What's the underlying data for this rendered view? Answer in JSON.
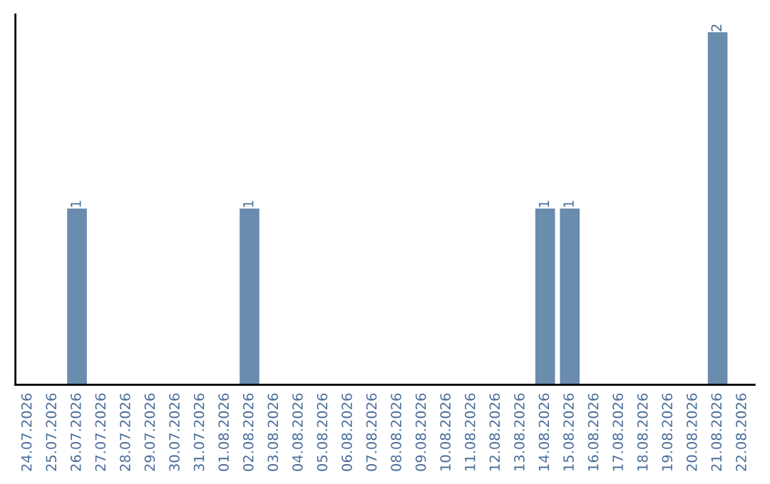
{
  "chart_data": {
    "type": "bar",
    "categories": [
      "24.07.2026",
      "25.07.2026",
      "26.07.2026",
      "27.07.2026",
      "28.07.2026",
      "29.07.2026",
      "30.07.2026",
      "31.07.2026",
      "01.08.2026",
      "02.08.2026",
      "03.08.2026",
      "04.08.2026",
      "05.08.2026",
      "06.08.2026",
      "07.08.2026",
      "08.08.2026",
      "09.08.2026",
      "10.08.2026",
      "11.08.2026",
      "12.08.2026",
      "13.08.2026",
      "14.08.2026",
      "15.08.2026",
      "16.08.2026",
      "17.08.2026",
      "18.08.2026",
      "19.08.2026",
      "20.08.2026",
      "21.08.2026",
      "22.08.2026"
    ],
    "values": [
      0,
      0,
      1,
      0,
      0,
      0,
      0,
      0,
      0,
      1,
      0,
      0,
      0,
      0,
      0,
      0,
      0,
      0,
      0,
      0,
      0,
      1,
      1,
      0,
      0,
      0,
      0,
      0,
      2,
      0
    ],
    "value_labels": [
      null,
      null,
      "1",
      null,
      null,
      null,
      null,
      null,
      null,
      "1",
      null,
      null,
      null,
      null,
      null,
      null,
      null,
      null,
      null,
      null,
      null,
      "1",
      "1",
      null,
      null,
      null,
      null,
      null,
      "2",
      null
    ],
    "color": "#6a8cae",
    "grid": false,
    "legend": false
  }
}
